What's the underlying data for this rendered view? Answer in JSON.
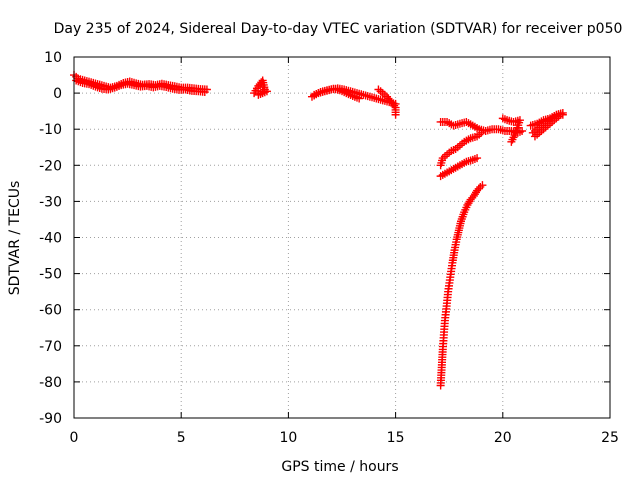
{
  "chart_data": {
    "type": "scatter",
    "title": "Day 235 of 2024, Sidereal Day-to-day VTEC variation (SDTVAR) for receiver p050",
    "xlabel": "GPS time / hours",
    "ylabel": "SDTVAR / TECUs",
    "xlim": [
      0,
      25
    ],
    "ylim": [
      -90,
      10
    ],
    "xticks": [
      "0",
      "5",
      "10",
      "15",
      "20",
      "25"
    ],
    "yticks": [
      "10",
      "0",
      "-10",
      "-20",
      "-30",
      "-40",
      "-50",
      "-60",
      "-70",
      "-80",
      "-90"
    ],
    "grid": true,
    "marker": "plus",
    "series": [
      {
        "color": "#ff0000",
        "segments": [
          [
            [
              0.0,
              5.0
            ],
            [
              0.2,
              4.0
            ],
            [
              0.5,
              3.5
            ],
            [
              0.8,
              3.0
            ],
            [
              1.1,
              2.5
            ],
            [
              1.4,
              2.0
            ],
            [
              1.7,
              1.5
            ],
            [
              2.0,
              2.0
            ],
            [
              2.3,
              2.8
            ],
            [
              2.6,
              3.2
            ],
            [
              2.9,
              2.7
            ],
            [
              3.2,
              2.3
            ],
            [
              3.5,
              2.5
            ],
            [
              3.8,
              2.2
            ],
            [
              4.1,
              2.6
            ],
            [
              4.4,
              2.2
            ],
            [
              4.7,
              1.9
            ],
            [
              5.0,
              1.5
            ],
            [
              5.3,
              1.5
            ],
            [
              5.6,
              1.3
            ],
            [
              5.9,
              1.1
            ],
            [
              6.2,
              1.0
            ]
          ],
          [
            [
              0.1,
              3.5
            ],
            [
              0.4,
              2.8
            ],
            [
              0.7,
              2.5
            ],
            [
              1.0,
              1.8
            ],
            [
              1.3,
              1.2
            ],
            [
              1.6,
              1.0
            ],
            [
              1.9,
              1.5
            ],
            [
              2.2,
              2.2
            ],
            [
              2.5,
              2.6
            ],
            [
              2.8,
              2.2
            ],
            [
              3.1,
              1.8
            ],
            [
              3.4,
              2.0
            ],
            [
              3.7,
              1.6
            ],
            [
              4.0,
              2.0
            ],
            [
              4.3,
              1.7
            ],
            [
              4.6,
              1.2
            ],
            [
              4.9,
              0.9
            ],
            [
              5.2,
              1.0
            ],
            [
              5.5,
              0.6
            ],
            [
              5.8,
              0.5
            ],
            [
              6.1,
              0.3
            ]
          ],
          [
            [
              8.4,
              0.0
            ],
            [
              8.6,
              2.0
            ],
            [
              8.8,
              3.5
            ],
            [
              8.9,
              1.0
            ],
            [
              8.6,
              -0.5
            ],
            [
              9.0,
              0.5
            ]
          ],
          [
            [
              11.1,
              -1.0
            ],
            [
              11.4,
              0.0
            ],
            [
              11.7,
              0.5
            ],
            [
              12.0,
              1.0
            ],
            [
              12.3,
              1.3
            ],
            [
              12.6,
              1.0
            ],
            [
              12.9,
              0.5
            ],
            [
              13.2,
              0.0
            ],
            [
              13.5,
              -0.5
            ],
            [
              13.8,
              -1.0
            ],
            [
              14.1,
              -1.5
            ],
            [
              14.4,
              -2.0
            ],
            [
              14.7,
              -2.5
            ],
            [
              15.0,
              -3.0
            ]
          ],
          [
            [
              11.2,
              -0.5
            ],
            [
              11.5,
              0.3
            ],
            [
              11.8,
              0.8
            ],
            [
              12.1,
              1.2
            ],
            [
              12.4,
              0.8
            ],
            [
              12.7,
              0.0
            ],
            [
              13.0,
              -0.8
            ],
            [
              13.3,
              -1.5
            ]
          ],
          [
            [
              14.2,
              1.0
            ],
            [
              14.4,
              0.0
            ],
            [
              14.6,
              -1.0
            ],
            [
              14.8,
              -2.5
            ],
            [
              15.0,
              -4.0
            ],
            [
              15.0,
              -6.0
            ]
          ],
          [
            [
              17.1,
              -8.0
            ],
            [
              17.4,
              -8.0
            ],
            [
              17.7,
              -9.0
            ],
            [
              18.0,
              -8.5
            ],
            [
              18.3,
              -8.0
            ],
            [
              18.6,
              -9.0
            ],
            [
              18.9,
              -10.0
            ],
            [
              19.2,
              -10.5
            ],
            [
              19.5,
              -10.0
            ],
            [
              19.8,
              -10.0
            ],
            [
              20.1,
              -10.5
            ],
            [
              20.4,
              -10.5
            ],
            [
              20.7,
              -11.0
            ],
            [
              20.9,
              -10.5
            ]
          ],
          [
            [
              20.0,
              -7.0
            ],
            [
              20.2,
              -7.5
            ],
            [
              20.5,
              -8.0
            ],
            [
              20.8,
              -7.5
            ],
            [
              20.6,
              -11.0
            ],
            [
              20.4,
              -13.5
            ]
          ],
          [
            [
              21.4,
              -11.0
            ],
            [
              21.6,
              -10.0
            ],
            [
              21.8,
              -9.0
            ],
            [
              22.0,
              -8.0
            ],
            [
              22.2,
              -7.5
            ],
            [
              22.4,
              -6.5
            ],
            [
              22.6,
              -6.0
            ],
            [
              22.8,
              -6.0
            ]
          ],
          [
            [
              21.3,
              -9.0
            ],
            [
              21.6,
              -8.5
            ],
            [
              21.9,
              -7.5
            ],
            [
              22.2,
              -7.0
            ],
            [
              22.5,
              -6.0
            ],
            [
              22.8,
              -5.5
            ],
            [
              21.5,
              -12.0
            ]
          ],
          [
            [
              17.1,
              -20.0
            ],
            [
              17.2,
              -18.0
            ],
            [
              17.4,
              -17.0
            ],
            [
              17.6,
              -16.0
            ],
            [
              17.8,
              -15.5
            ],
            [
              18.0,
              -14.5
            ],
            [
              18.2,
              -13.5
            ],
            [
              18.5,
              -12.5
            ],
            [
              18.8,
              -12.0
            ],
            [
              19.0,
              -11.0
            ]
          ],
          [
            [
              17.1,
              -23.0
            ],
            [
              17.4,
              -22.0
            ],
            [
              17.7,
              -21.0
            ],
            [
              18.0,
              -20.0
            ],
            [
              18.3,
              -19.0
            ],
            [
              18.6,
              -18.5
            ],
            [
              18.8,
              -18.0
            ]
          ],
          [
            [
              17.1,
              -81.0
            ],
            [
              17.15,
              -76.0
            ],
            [
              17.2,
              -71.0
            ],
            [
              17.25,
              -67.0
            ],
            [
              17.3,
              -63.0
            ],
            [
              17.38,
              -59.0
            ],
            [
              17.45,
              -55.0
            ],
            [
              17.55,
              -51.0
            ],
            [
              17.65,
              -47.0
            ],
            [
              17.75,
              -43.5
            ],
            [
              17.85,
              -40.5
            ],
            [
              17.95,
              -38.0
            ],
            [
              18.05,
              -35.5
            ],
            [
              18.2,
              -33.0
            ],
            [
              18.35,
              -31.0
            ],
            [
              18.5,
              -29.5
            ],
            [
              18.65,
              -28.5
            ],
            [
              18.8,
              -27.0
            ],
            [
              18.95,
              -26.0
            ],
            [
              19.05,
              -25.5
            ]
          ]
        ]
      }
    ]
  }
}
